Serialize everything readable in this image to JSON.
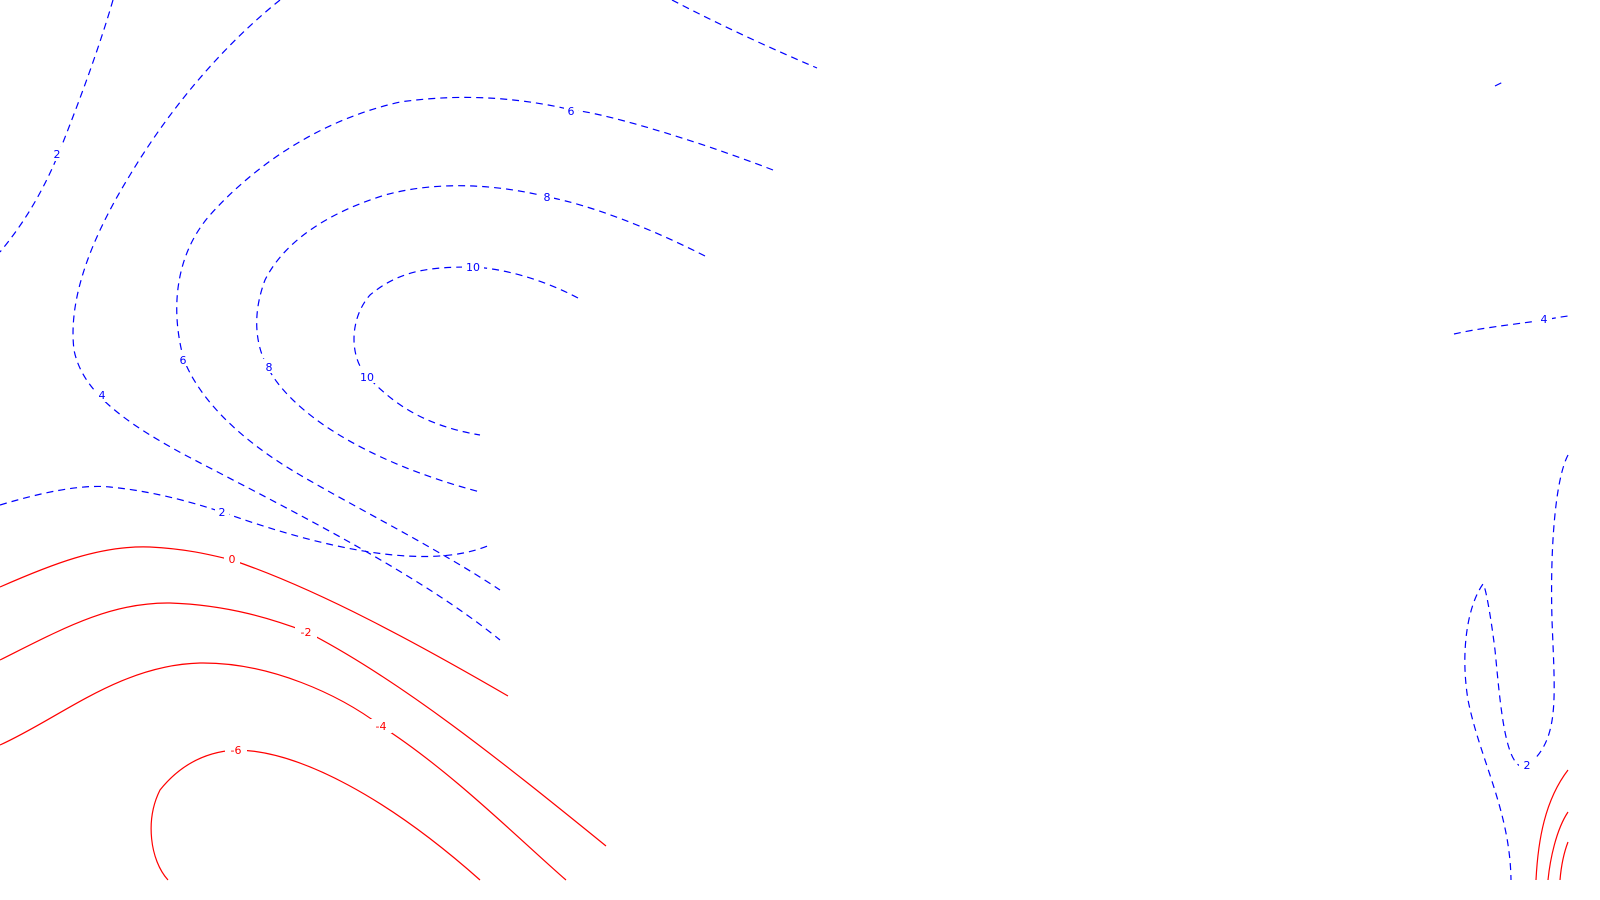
{
  "map": {
    "contour_positive_color": "#0000ff",
    "contour_negative_color": "#ff0000",
    "contour_labels": [
      "2",
      "4",
      "6",
      "8",
      "10",
      "6",
      "8",
      "10",
      "2",
      "0",
      "-2",
      "-4",
      "-6",
      "4",
      "2"
    ]
  }
}
